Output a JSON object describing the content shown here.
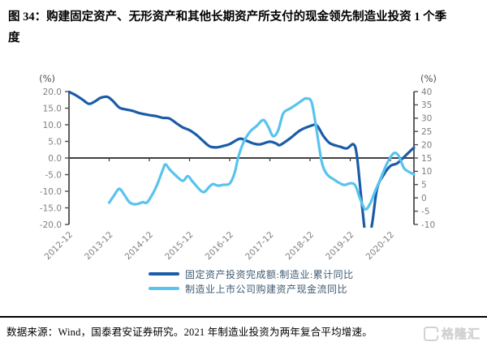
{
  "figure": {
    "title": "图 34：购建固定资产、无形资产和其他长期资产所支付的现金领先制造业投资 1 个季度"
  },
  "footer": {
    "source": "数据来源：Wind，国泰君安证券研究。2021 年制造业投资为两年复合平均增速。",
    "logo_text": "格隆汇"
  },
  "colors": {
    "dark_line": "#1a5ca8",
    "light_line": "#58c3ee",
    "axis": "#4d4d4d",
    "zero_line": "#404040",
    "tick_text": "#7f7f7f"
  },
  "chart_data": {
    "type": "line",
    "title": "",
    "grid": false,
    "legend_position": "bottom",
    "x_tick_labels": [
      "2012-12",
      "2013-12",
      "2014-12",
      "2015-12",
      "2016-12",
      "2017-12",
      "2018-12",
      "2019-12",
      "2020-12"
    ],
    "left_axis": {
      "label": "(%)",
      "min": -20,
      "max": 20,
      "tick_labels": [
        "20.0",
        "15.0",
        "10.0",
        "5.0",
        "0.0",
        "-5.0",
        "-10.0",
        "-15.0",
        "-20.0"
      ]
    },
    "right_axis": {
      "label": "(%)",
      "min": -10,
      "max": 40,
      "tick_labels": [
        "40",
        "35",
        "30",
        "25",
        "20",
        "15",
        "10",
        "5",
        "0",
        "-5",
        "-10"
      ]
    },
    "x_unit": "months since 2012-12 (x ticks every 12 months)",
    "series": [
      {
        "name": "固定资产投资完成额:制造业:累计同比",
        "axis": "left",
        "color": "#1a5ca8",
        "points": [
          [
            0,
            19.9
          ],
          [
            2,
            18.9
          ],
          [
            4,
            17.6
          ],
          [
            6,
            16.3
          ],
          [
            8,
            17.2
          ],
          [
            9,
            17.9
          ],
          [
            10,
            18.3
          ],
          [
            11.5,
            18.4
          ],
          [
            13,
            17.3
          ],
          [
            15,
            15.2
          ],
          [
            17,
            14.6
          ],
          [
            19,
            14.2
          ],
          [
            21,
            13.5
          ],
          [
            24,
            12.9
          ],
          [
            26,
            12.6
          ],
          [
            28,
            12.1
          ],
          [
            30,
            11.9
          ],
          [
            32,
            10.5
          ],
          [
            34,
            9.2
          ],
          [
            36,
            8.4
          ],
          [
            38,
            7.0
          ],
          [
            40,
            5.2
          ],
          [
            42,
            3.5
          ],
          [
            44,
            3.2
          ],
          [
            46,
            3.6
          ],
          [
            48,
            4.2
          ],
          [
            51,
            5.8
          ],
          [
            53,
            5.2
          ],
          [
            55,
            4.4
          ],
          [
            57,
            4.1
          ],
          [
            60,
            4.9
          ],
          [
            62,
            4.3
          ],
          [
            63,
            3.9
          ],
          [
            66,
            5.9
          ],
          [
            69,
            8.3
          ],
          [
            72,
            9.6
          ],
          [
            74,
            9.8
          ],
          [
            76,
            6.6
          ],
          [
            78,
            4.4
          ],
          [
            81,
            3.4
          ],
          [
            83,
            2.9
          ],
          [
            85,
            4.1
          ],
          [
            86,
            0.5
          ],
          [
            87.5,
            -14
          ],
          [
            89,
            -26
          ],
          [
            90.5,
            -20
          ],
          [
            92,
            -9.3
          ],
          [
            94,
            -5.0
          ],
          [
            96,
            -2.4
          ],
          [
            98,
            -1.6
          ],
          [
            100,
            0.2
          ],
          [
            102,
            2.2
          ],
          [
            103,
            3.1
          ]
        ]
      },
      {
        "name": "制造业上市公司购建资产现金流同比",
        "axis": "right",
        "color": "#58c3ee",
        "points": [
          [
            12,
            -1.8
          ],
          [
            13.5,
            1.0
          ],
          [
            15,
            3.4
          ],
          [
            16.5,
            1.2
          ],
          [
            18,
            -1.6
          ],
          [
            19.5,
            -2.4
          ],
          [
            21,
            -2.1
          ],
          [
            22,
            -1.6
          ],
          [
            23,
            -1.9
          ],
          [
            24,
            -0.6
          ],
          [
            26,
            4.0
          ],
          [
            28,
            10.5
          ],
          [
            28.8,
            12.6
          ],
          [
            30,
            10.8
          ],
          [
            32,
            8.3
          ],
          [
            34,
            6.4
          ],
          [
            35.5,
            8.2
          ],
          [
            37,
            6.0
          ],
          [
            40,
            2.2
          ],
          [
            42,
            4.3
          ],
          [
            43,
            5.2
          ],
          [
            44.5,
            4.6
          ],
          [
            46,
            4.9
          ],
          [
            48,
            5.4
          ],
          [
            49.5,
            9.5
          ],
          [
            50.5,
            15.0
          ],
          [
            52,
            20.5
          ],
          [
            54,
            24.8
          ],
          [
            56,
            27.0
          ],
          [
            58,
            29.3
          ],
          [
            59.5,
            26.8
          ],
          [
            61,
            23.2
          ],
          [
            62.5,
            25.5
          ],
          [
            64,
            31.8
          ],
          [
            66,
            33.6
          ],
          [
            68,
            35.2
          ],
          [
            70,
            37.0
          ],
          [
            71,
            37.4
          ],
          [
            72.5,
            35.8
          ],
          [
            74,
            25.0
          ],
          [
            75.5,
            13.5
          ],
          [
            77,
            9.0
          ],
          [
            79,
            7.0
          ],
          [
            82,
            4.9
          ],
          [
            84,
            5.5
          ],
          [
            85.5,
            4.7
          ],
          [
            87,
            -0.5
          ],
          [
            88.5,
            -4.3
          ],
          [
            90,
            -2.0
          ],
          [
            91.5,
            2.7
          ],
          [
            93,
            7.0
          ],
          [
            95,
            13.0
          ],
          [
            97,
            16.8
          ],
          [
            98.5,
            15.8
          ],
          [
            100,
            11.3
          ],
          [
            101.5,
            9.8
          ],
          [
            103,
            8.9
          ]
        ]
      }
    ]
  }
}
